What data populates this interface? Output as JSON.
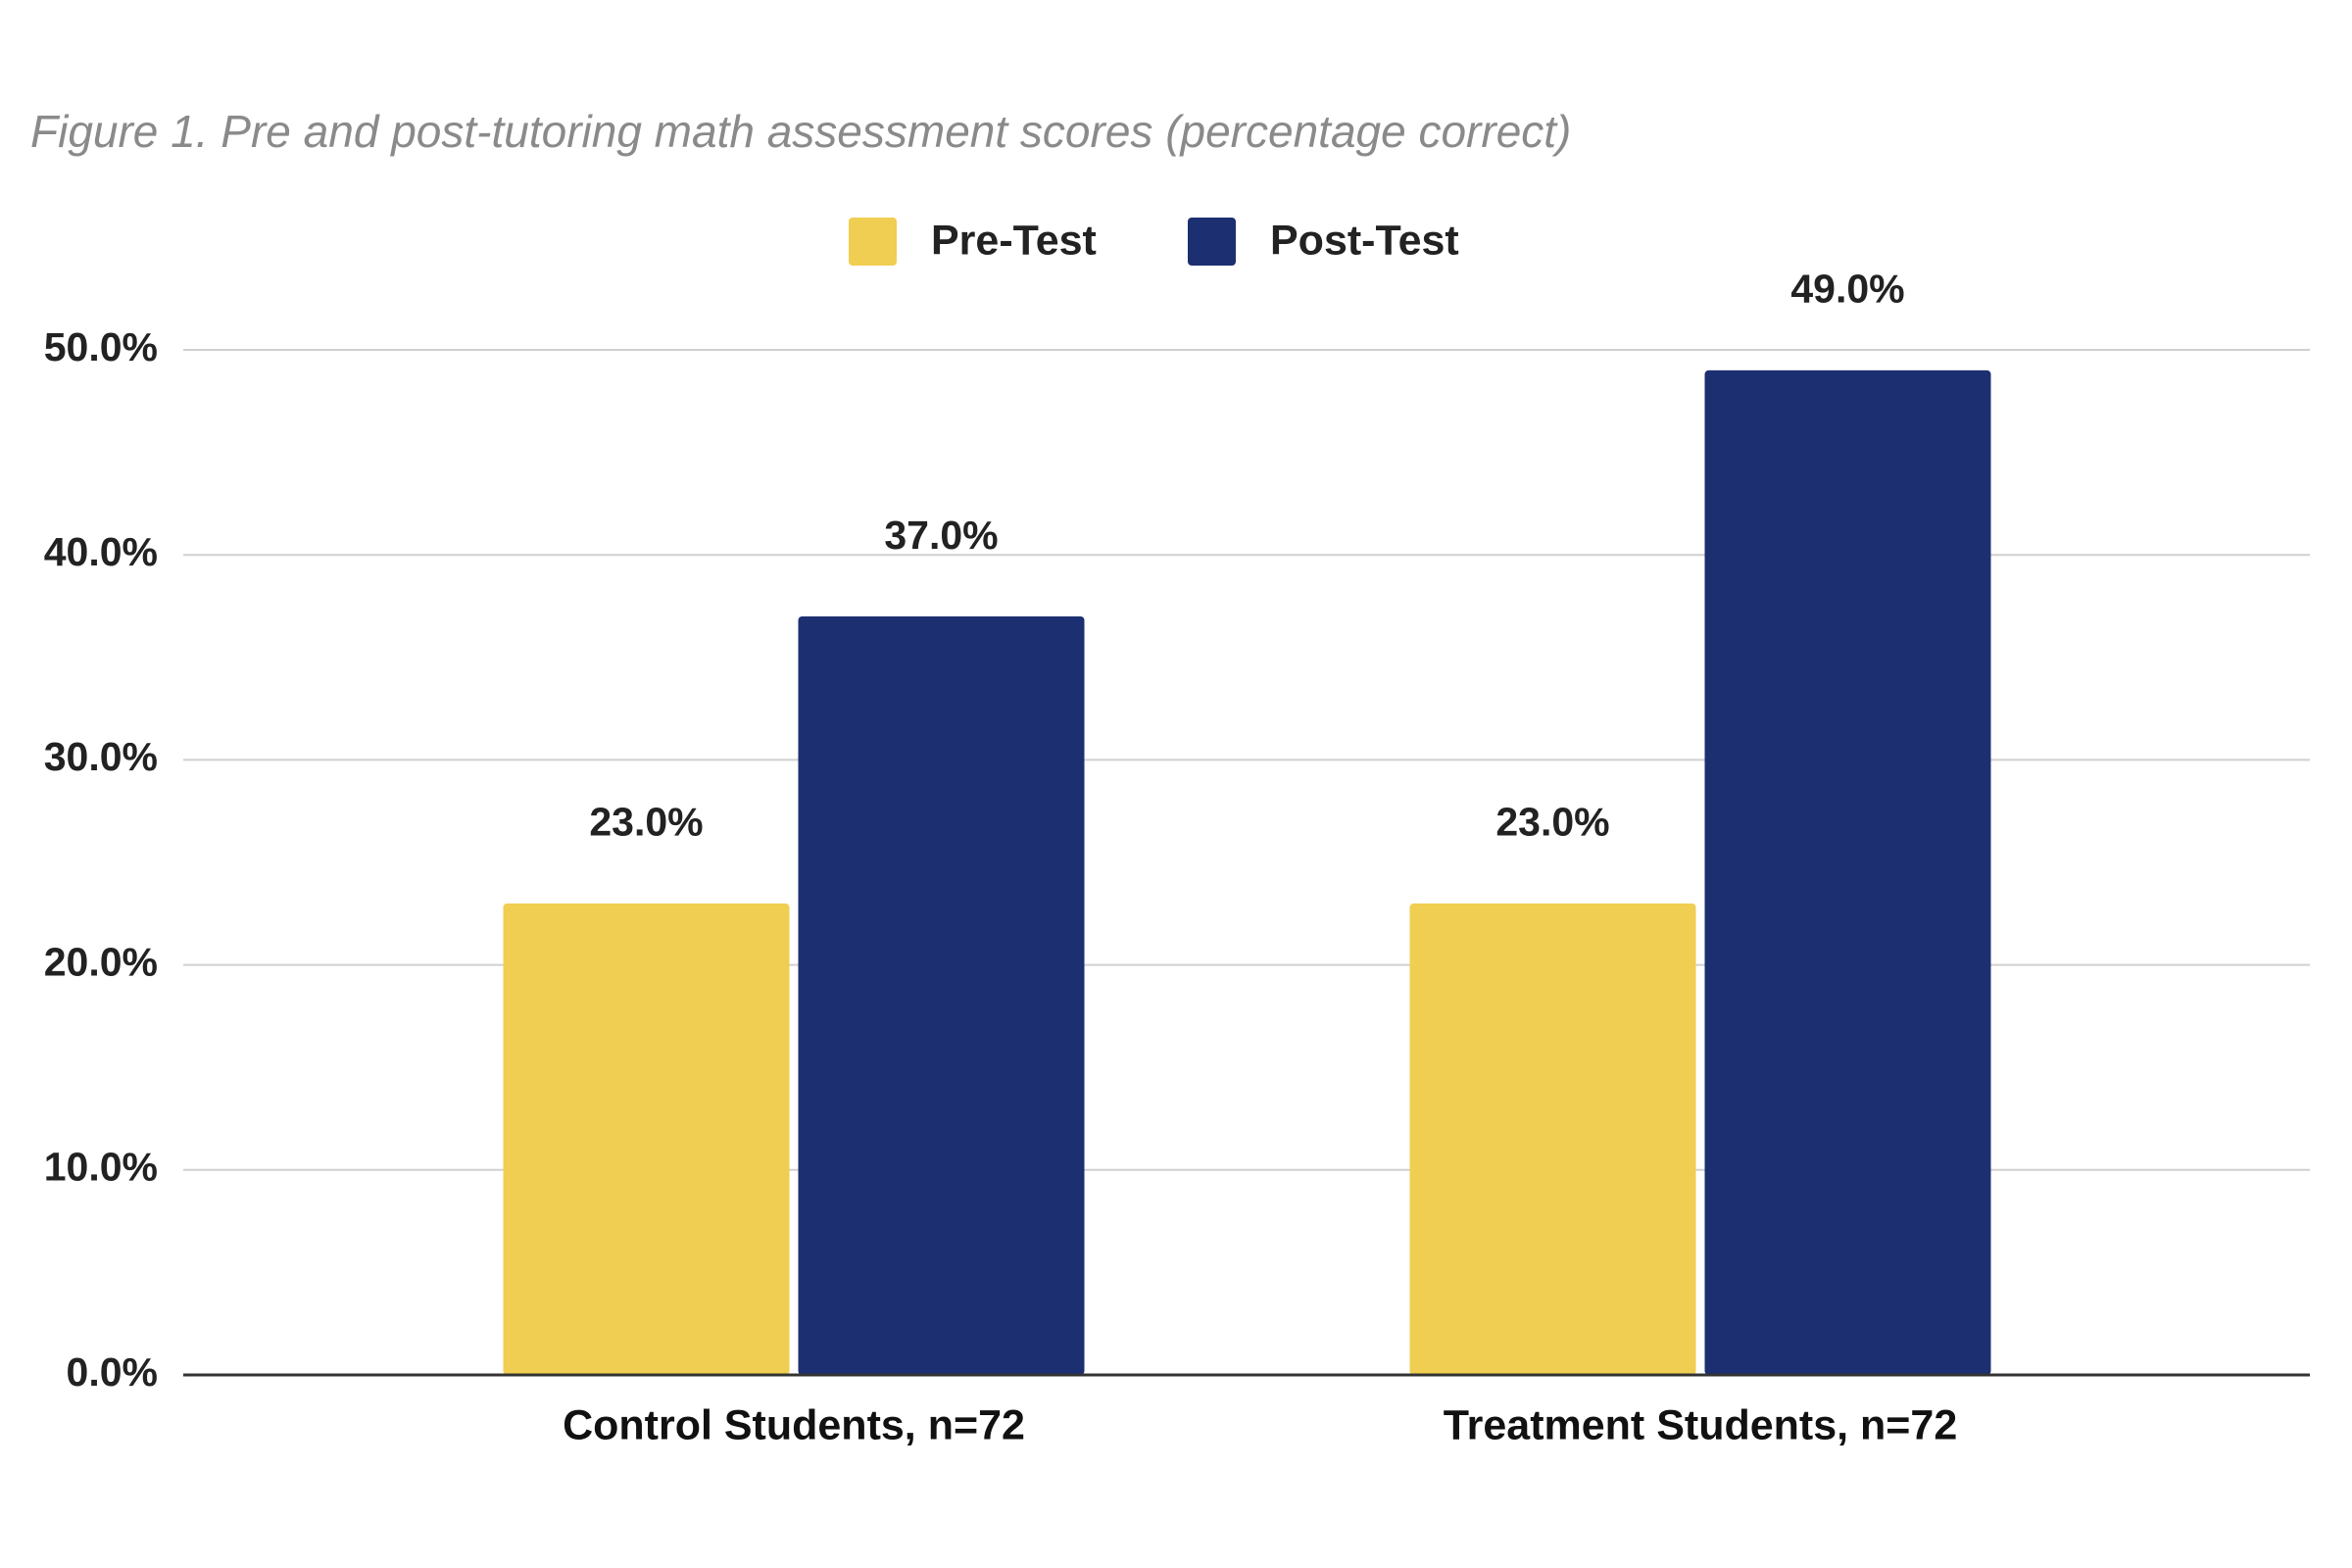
{
  "chart_data": {
    "type": "bar",
    "title": "Figure 1. Pre and post-tutoring math assessment scores (percentage correct)",
    "categories": [
      "Control Students, n=72",
      "Treatment Students, n=72"
    ],
    "series": [
      {
        "name": "Pre-Test",
        "color": "#f0ce52",
        "values": [
          23,
          23
        ],
        "value_labels": [
          "23.0%",
          "23.0%"
        ]
      },
      {
        "name": "Post-Test",
        "color": "#1c2f70",
        "values": [
          37,
          49
        ],
        "value_labels": [
          "37.0%",
          "49.0%"
        ]
      }
    ],
    "ylim": [
      0,
      50
    ],
    "yticks": [
      {
        "value": 0,
        "label": "0.0%"
      },
      {
        "value": 10,
        "label": "10.0%"
      },
      {
        "value": 20,
        "label": "20.0%"
      },
      {
        "value": 30,
        "label": "30.0%"
      },
      {
        "value": 40,
        "label": "40.0%"
      },
      {
        "value": 50,
        "label": "50.0%"
      }
    ],
    "grid": true,
    "legend": "top"
  }
}
